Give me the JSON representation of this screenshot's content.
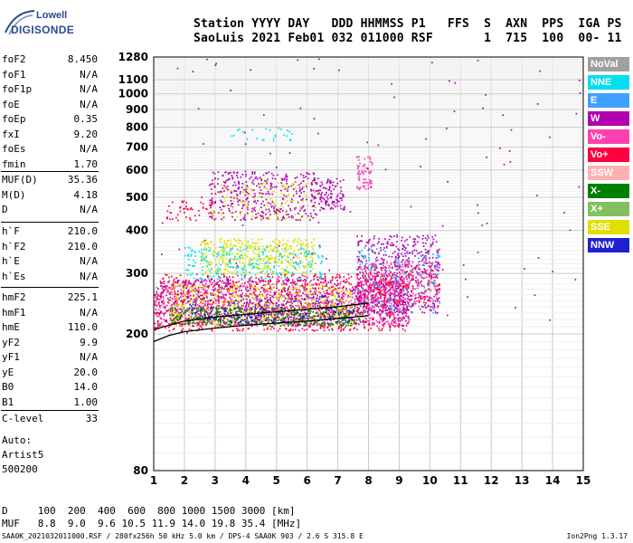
{
  "logo": {
    "line1": "Lowell",
    "line2": "DIGISONDE"
  },
  "header": {
    "labels": "Station YYYY DAY   DDD HHMMSS P1   FFS  S  AXN  PPS  IGA PS",
    "values": "SaoLuis 2021 Feb01 032 011000 RSF       1  715  100  00- 11"
  },
  "params_group1": [
    {
      "label": "foF2",
      "value": "8.450"
    },
    {
      "label": "foF1",
      "value": "N/A"
    },
    {
      "label": "foF1p",
      "value": "N/A"
    },
    {
      "label": "foE",
      "value": "N/A"
    },
    {
      "label": "foEp",
      "value": "0.35"
    },
    {
      "label": "fxI",
      "value": "9.20"
    },
    {
      "label": "foEs",
      "value": "N/A"
    },
    {
      "label": "fmin",
      "value": "1.70"
    }
  ],
  "params_group2": [
    {
      "label": "MUF(D)",
      "value": "35.36"
    },
    {
      "label": "M(D)",
      "value": "4.18"
    },
    {
      "label": "D",
      "value": "N/A"
    }
  ],
  "params_group3": [
    {
      "label": "h`F",
      "value": "210.0"
    },
    {
      "label": "h`F2",
      "value": "210.0"
    },
    {
      "label": "h`E",
      "value": "N/A"
    },
    {
      "label": "h`Es",
      "value": "N/A"
    }
  ],
  "params_group4": [
    {
      "label": "hmF2",
      "value": "225.1"
    },
    {
      "label": "hmF1",
      "value": "N/A"
    },
    {
      "label": "hmE",
      "value": "110.0"
    },
    {
      "label": "yF2",
      "value": "9.9"
    },
    {
      "label": "yF1",
      "value": "N/A"
    },
    {
      "label": "yE",
      "value": "20.0"
    },
    {
      "label": "B0",
      "value": "14.0"
    },
    {
      "label": "B1",
      "value": "1.00"
    }
  ],
  "c_level": {
    "label": "C-level",
    "value": "33"
  },
  "auto": [
    "Auto:",
    "Artist5",
    "500200"
  ],
  "legend": [
    {
      "name": "NoVal",
      "color": "#a0a0a0"
    },
    {
      "name": "NNE",
      "color": "#00e0f0"
    },
    {
      "name": "E",
      "color": "#40a0ff"
    },
    {
      "name": "W",
      "color": "#b000b0"
    },
    {
      "name": "Vo-",
      "color": "#ff40b0"
    },
    {
      "name": "Vo+",
      "color": "#ff0040"
    },
    {
      "name": "SSW",
      "color": "#ffb0b0"
    },
    {
      "name": "X-",
      "color": "#008000"
    },
    {
      "name": "X+",
      "color": "#80c060"
    },
    {
      "name": "SSE",
      "color": "#e0e000"
    },
    {
      "name": "NNW",
      "color": "#2020d0"
    }
  ],
  "bottom": {
    "d_row": "D     100  200  400  600  800 1000 1500 3000 [km]",
    "muf_row": "MUF   8.8  9.0  9.6 10.5 11.9 14.0 19.8 35.4 [MHz]"
  },
  "footer": {
    "left": "SAA0K_2021032011000.RSF / 280fx256h 50 kHz 5.0 km / DPS-4 SAA0K 903 / 2.6 S 315.8 E",
    "right": "Ion2Png 1.3.17"
  },
  "chart_data": {
    "type": "scatter",
    "title": "",
    "xlabel": "",
    "ylabel": "",
    "xlim": [
      1,
      15
    ],
    "ylim": [
      80,
      1280
    ],
    "y_scale": "log",
    "x_ticks": [
      1,
      2,
      3,
      4,
      5,
      6,
      7,
      8,
      9,
      10,
      11,
      12,
      13,
      14,
      15
    ],
    "y_ticks": [
      80,
      200,
      300,
      400,
      500,
      600,
      700,
      800,
      900,
      1000,
      1100,
      1280
    ],
    "grid": true,
    "legend_position": "right",
    "traces": [
      {
        "name": "O-trace",
        "x": [
          1.0,
          1.5,
          2.0,
          3.0,
          4.0,
          5.0,
          6.0,
          7.0,
          8.0
        ],
        "y": [
          190,
          198,
          203,
          208,
          212,
          215,
          218,
          222,
          226
        ]
      },
      {
        "name": "X-trace",
        "x": [
          1.0,
          1.5,
          2.0,
          3.0,
          4.0,
          5.0,
          6.0,
          7.0,
          8.0
        ],
        "y": [
          206,
          212,
          218,
          224,
          228,
          232,
          236,
          240,
          246
        ]
      }
    ],
    "echo_regions": [
      {
        "x": [
          1.0,
          9.3
        ],
        "y": [
          205,
          300
        ],
        "color": "#ff0040",
        "density": 1100
      },
      {
        "x": [
          1.0,
          9.3
        ],
        "y": [
          212,
          290
        ],
        "color": "#b000b0",
        "density": 800
      },
      {
        "x": [
          1.0,
          9.3
        ],
        "y": [
          212,
          285
        ],
        "color": "#ff40b0",
        "density": 600
      },
      {
        "x": [
          1.5,
          7.5
        ],
        "y": [
          212,
          280
        ],
        "color": "#e0e000",
        "density": 500
      },
      {
        "x": [
          1.5,
          7.8
        ],
        "y": [
          212,
          240
        ],
        "color": "#008000",
        "density": 380
      },
      {
        "x": [
          2.0,
          7.5
        ],
        "y": [
          215,
          260
        ],
        "color": "#2020d0",
        "density": 220
      },
      {
        "x": [
          2.5,
          6.2
        ],
        "y": [
          300,
          380
        ],
        "color": "#e0e000",
        "density": 420
      },
      {
        "x": [
          2.0,
          6.5
        ],
        "y": [
          290,
          360
        ],
        "color": "#00e0f0",
        "density": 250
      },
      {
        "x": [
          7.6,
          10.3
        ],
        "y": [
          230,
          390
        ],
        "color": "#b000b0",
        "density": 450
      },
      {
        "x": [
          7.6,
          10.3
        ],
        "y": [
          230,
          360
        ],
        "color": "#40a0ff",
        "density": 250
      },
      {
        "x": [
          7.6,
          10.3
        ],
        "y": [
          250,
          330
        ],
        "color": "#ff40b0",
        "density": 220
      },
      {
        "x": [
          7.6,
          10.3
        ],
        "y": [
          240,
          320
        ],
        "color": "#ff0040",
        "density": 200
      },
      {
        "x": [
          2.8,
          6.3
        ],
        "y": [
          430,
          600
        ],
        "color": "#b000b0",
        "density": 380
      },
      {
        "x": [
          2.8,
          6.3
        ],
        "y": [
          430,
          560
        ],
        "color": "#e0e000",
        "density": 140
      },
      {
        "x": [
          6.1,
          7.2
        ],
        "y": [
          460,
          570
        ],
        "color": "#b000b0",
        "density": 120
      },
      {
        "x": [
          7.6,
          8.1
        ],
        "y": [
          530,
          660
        ],
        "color": "#ff40b0",
        "density": 70
      },
      {
        "x": [
          1.4,
          2.9
        ],
        "y": [
          430,
          490
        ],
        "color": "#ff0040",
        "density": 50
      },
      {
        "x": [
          1.0,
          15.0
        ],
        "y": [
          200,
          1280
        ],
        "color": "#b000b0",
        "density": 120
      },
      {
        "x": [
          3.5,
          5.5
        ],
        "y": [
          730,
          800
        ],
        "color": "#00e0f0",
        "density": 25
      }
    ]
  }
}
